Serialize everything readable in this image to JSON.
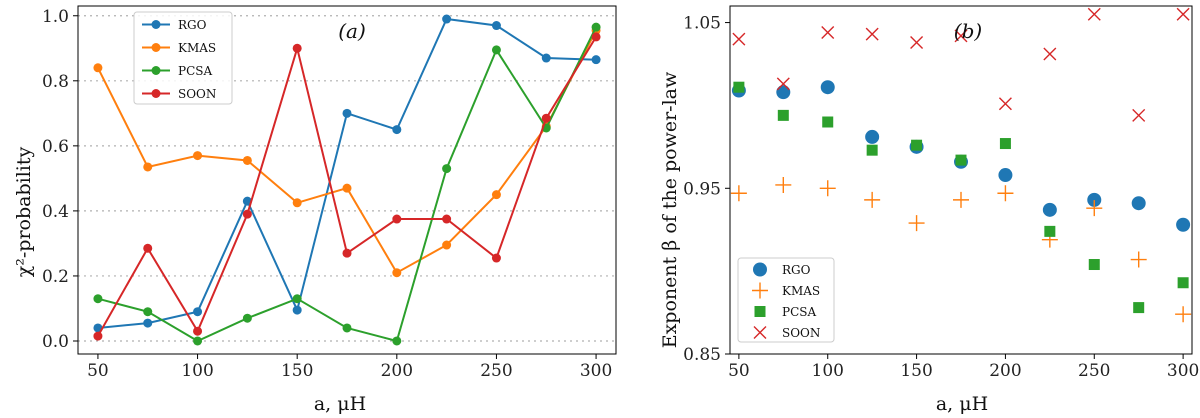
{
  "chart_data": [
    {
      "type": "line",
      "panel_label": "(a)",
      "xlabel": "a, μH",
      "ylabel": "χ²-probability",
      "x": [
        50,
        75,
        100,
        125,
        150,
        175,
        200,
        225,
        250,
        275,
        300
      ],
      "xlim": [
        40,
        310
      ],
      "ylim": [
        -0.04,
        1.03
      ],
      "xticks": [
        50,
        100,
        150,
        200,
        250,
        300
      ],
      "yticks": [
        0.0,
        0.2,
        0.4,
        0.6,
        0.8,
        1.0
      ],
      "ytick_labels": [
        "0.0",
        "0.2",
        "0.4",
        "0.6",
        "0.8",
        "1.0"
      ],
      "grid": "horizontal dotted",
      "legend_position": "top-left",
      "series": [
        {
          "name": "RGO",
          "color": "#1f77b4",
          "values": [
            0.04,
            0.055,
            0.09,
            0.43,
            0.095,
            0.7,
            0.65,
            0.99,
            0.97,
            0.87,
            0.865
          ]
        },
        {
          "name": "KMAS",
          "color": "#ff7f0e",
          "values": [
            0.84,
            0.535,
            0.57,
            0.555,
            0.425,
            0.47,
            0.21,
            0.295,
            0.45,
            0.66,
            0.955
          ]
        },
        {
          "name": "PCSA",
          "color": "#2ca02c",
          "values": [
            0.13,
            0.09,
            0.0,
            0.07,
            0.13,
            0.04,
            0.0,
            0.53,
            0.895,
            0.655,
            0.965
          ]
        },
        {
          "name": "SOON",
          "color": "#d62728",
          "values": [
            0.015,
            0.285,
            0.03,
            0.39,
            0.9,
            0.27,
            0.375,
            0.375,
            0.255,
            0.685,
            0.935
          ]
        }
      ]
    },
    {
      "type": "scatter",
      "panel_label": "(b)",
      "xlabel": "a, μH",
      "ylabel": "Exponent β of the power-law",
      "x": [
        50,
        75,
        100,
        125,
        150,
        175,
        200,
        225,
        250,
        275,
        300
      ],
      "xlim": [
        45,
        305
      ],
      "ylim": [
        0.85,
        1.06
      ],
      "xticks": [
        50,
        100,
        150,
        200,
        250,
        300
      ],
      "yticks": [
        0.85,
        0.95,
        1.05
      ],
      "ytick_labels": [
        "0.85",
        "0.95",
        "1.05"
      ],
      "grid": "none",
      "legend_position": "bottom-left",
      "series": [
        {
          "name": "RGO",
          "color": "#1f77b4",
          "marker": "circle",
          "values": [
            1.009,
            1.008,
            1.011,
            0.981,
            0.975,
            0.966,
            0.958,
            0.937,
            0.943,
            0.941,
            0.928
          ]
        },
        {
          "name": "KMAS",
          "color": "#ff7f0e",
          "marker": "plus",
          "values": [
            0.947,
            0.952,
            0.95,
            0.943,
            0.929,
            0.943,
            0.947,
            0.919,
            0.938,
            0.907,
            0.874
          ]
        },
        {
          "name": "PCSA",
          "color": "#2ca02c",
          "marker": "square",
          "values": [
            1.011,
            0.994,
            0.99,
            0.973,
            0.976,
            0.967,
            0.977,
            0.924,
            0.904,
            0.878,
            0.893
          ]
        },
        {
          "name": "SOON",
          "color": "#d62728",
          "marker": "x",
          "values": [
            1.04,
            1.013,
            1.044,
            1.043,
            1.038,
            1.042,
            1.001,
            1.031,
            1.055,
            0.994,
            1.055
          ]
        }
      ]
    }
  ]
}
